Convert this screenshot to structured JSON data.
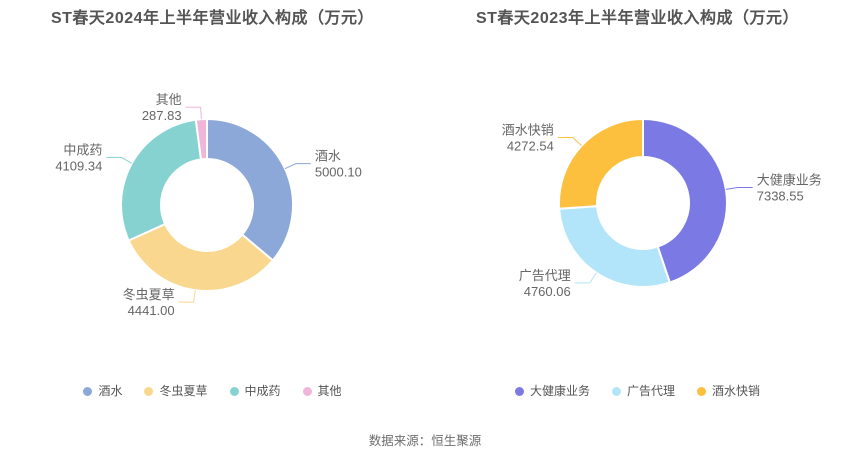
{
  "source": "数据来源：恒生聚源",
  "chart_data": [
    {
      "type": "pie",
      "subtype": "donut",
      "title": "ST春天2024年上半年营业收入构成（万元）",
      "categories": [
        "酒水",
        "冬虫夏草",
        "中成药",
        "其他"
      ],
      "values": [
        5000.1,
        4441.0,
        4109.34,
        287.83
      ],
      "value_labels": [
        "5000.10",
        "4441.00",
        "4109.34",
        "287.83"
      ],
      "colors": [
        "#8CA8D8",
        "#FAD78E",
        "#85D2D0",
        "#EFB6DA"
      ],
      "legend_position": "bottom",
      "start_angle": "top",
      "clockwise": true,
      "label_text_color": "#666666"
    },
    {
      "type": "pie",
      "subtype": "donut",
      "title": "ST春天2023年上半年营业收入构成（万元）",
      "categories": [
        "大健康业务",
        "广告代理",
        "酒水快销"
      ],
      "values": [
        7338.55,
        4760.06,
        4272.54
      ],
      "value_labels": [
        "7338.55",
        "4760.06",
        "4272.54"
      ],
      "colors": [
        "#7B7AE4",
        "#B3E5FA",
        "#FCBF3E"
      ],
      "legend_position": "bottom",
      "start_angle": "top",
      "clockwise": true,
      "label_text_color": "#666666"
    }
  ]
}
